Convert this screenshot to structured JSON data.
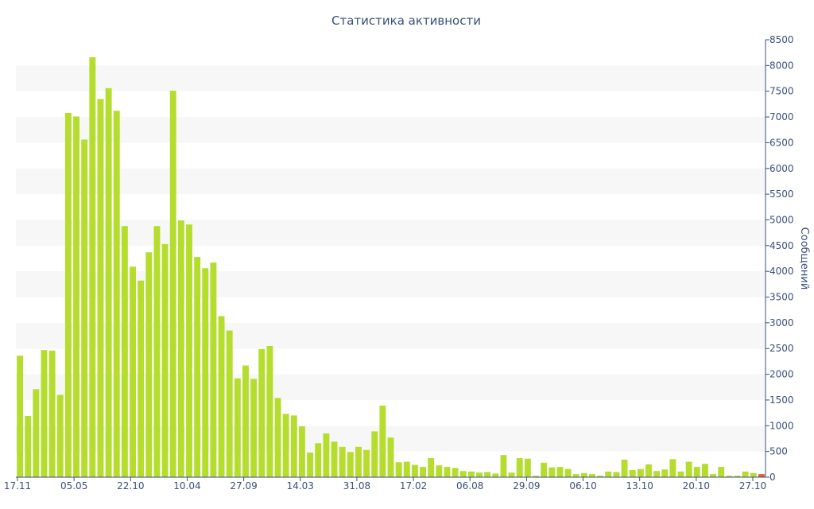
{
  "chart_data": {
    "type": "bar",
    "title": "Статистика активности",
    "ylabel": "Сообщений",
    "xlabel": "",
    "ylim": [
      0,
      8500
    ],
    "y_ticks": [
      0,
      500,
      1000,
      1500,
      2000,
      2500,
      3000,
      3500,
      4000,
      4500,
      5000,
      5500,
      6000,
      6500,
      7000,
      7500,
      8000,
      8500
    ],
    "x_tick_labels": [
      "17.11",
      "05.05",
      "22.10",
      "10.04",
      "27.09",
      "14.03",
      "31.08",
      "17.02",
      "06.08",
      "29.09",
      "06.10",
      "13.10",
      "20.10",
      "27.10"
    ],
    "y_axis_side": "right",
    "grid": "alternating horizontal bands",
    "colors": {
      "bar": "#b5dd2e",
      "last_bar": "#e85d2a",
      "text": "#3a4f7a",
      "band": "#f7f7f7"
    },
    "values": [
      2360,
      1190,
      1710,
      2470,
      2460,
      1600,
      7080,
      7010,
      6560,
      8160,
      7350,
      7560,
      7120,
      4880,
      4090,
      3820,
      4370,
      4880,
      4530,
      7510,
      4990,
      4910,
      4280,
      4060,
      4170,
      3130,
      2850,
      1920,
      2170,
      1910,
      2490,
      2550,
      1540,
      1230,
      1200,
      990,
      480,
      660,
      850,
      690,
      590,
      490,
      590,
      530,
      890,
      1390,
      770,
      290,
      300,
      240,
      200,
      370,
      230,
      200,
      180,
      120,
      110,
      90,
      100,
      70,
      430,
      90,
      370,
      360,
      30,
      280,
      190,
      200,
      160,
      60,
      80,
      60,
      30,
      110,
      100,
      340,
      140,
      160,
      250,
      120,
      150,
      350,
      110,
      300,
      200,
      260,
      60,
      200,
      30,
      30,
      110,
      80,
      60
    ]
  }
}
